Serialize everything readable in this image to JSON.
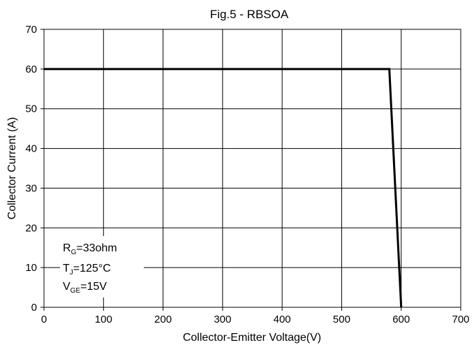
{
  "chart_data": {
    "type": "line",
    "title": "Fig.5 - RBSOA",
    "xlabel": "Collector-Emitter Voltage(V)",
    "ylabel": "Collector Current (A)",
    "xlim": [
      0,
      700
    ],
    "ylim": [
      0,
      70
    ],
    "xticks": [
      "0",
      "100",
      "200",
      "300",
      "400",
      "500",
      "600",
      "700"
    ],
    "yticks": [
      "0",
      "10",
      "20",
      "30",
      "40",
      "50",
      "60",
      "70"
    ],
    "grid": true,
    "series": [
      {
        "x": [
          0,
          580,
          600
        ],
        "y": [
          60,
          60,
          0
        ]
      }
    ],
    "annotations": [
      {
        "main": "R",
        "sub": "G",
        "rest": "=33ohm"
      },
      {
        "main": "T",
        "sub": "J",
        "rest": "=125°C"
      },
      {
        "main": "V",
        "sub": "GE",
        "rest": "=15V"
      }
    ],
    "colors": {
      "line": "#000000",
      "grid": "#000000",
      "background": "#ffffff"
    }
  }
}
